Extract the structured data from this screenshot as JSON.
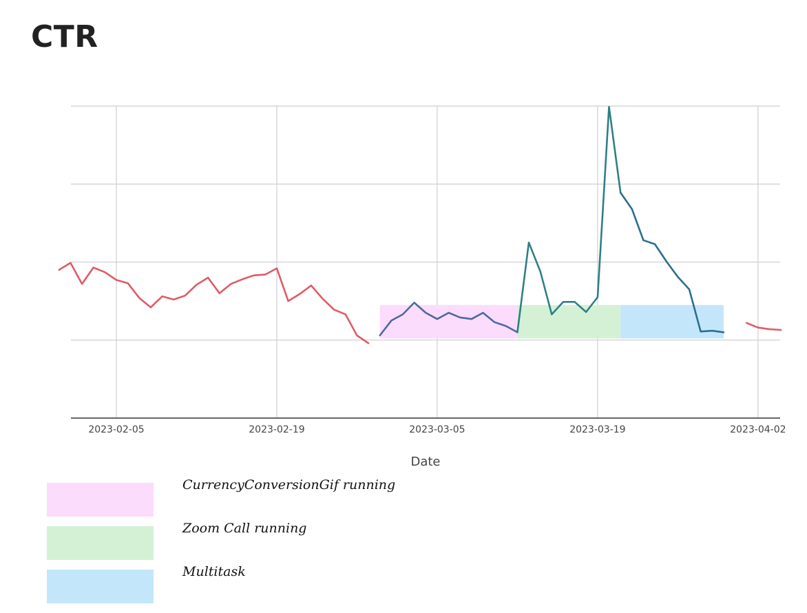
{
  "page": {
    "title": "CTR"
  },
  "chart_data": {
    "type": "line",
    "title": "CTR",
    "xlabel": "Date",
    "ylabel": "",
    "x_ticks": [
      "2023-02-05",
      "2023-02-19",
      "2023-03-05",
      "2023-03-19",
      "2023-04-02"
    ],
    "x_range": [
      "2023-01-31",
      "2023-04-04"
    ],
    "y_range": [
      0,
      4
    ],
    "y_gridlines": [
      1,
      2,
      3,
      4
    ],
    "y_tick_labels_visible": false,
    "grid": true,
    "series": [
      {
        "color": "#e05a66",
        "points": [
          [
            "2023-01-31",
            1.9
          ],
          [
            "2023-02-01",
            1.99
          ],
          [
            "2023-02-02",
            1.72
          ],
          [
            "2023-02-03",
            1.93
          ],
          [
            "2023-02-04",
            1.87
          ],
          [
            "2023-02-05",
            1.77
          ],
          [
            "2023-02-06",
            1.73
          ],
          [
            "2023-02-07",
            1.54
          ],
          [
            "2023-02-08",
            1.42
          ],
          [
            "2023-02-09",
            1.56
          ],
          [
            "2023-02-10",
            1.52
          ],
          [
            "2023-02-11",
            1.57
          ],
          [
            "2023-02-12",
            1.71
          ],
          [
            "2023-02-13",
            1.8
          ],
          [
            "2023-02-14",
            1.6
          ],
          [
            "2023-02-15",
            1.72
          ],
          [
            "2023-02-16",
            1.78
          ],
          [
            "2023-02-17",
            1.83
          ],
          [
            "2023-02-18",
            1.84
          ],
          [
            "2023-02-19",
            1.92
          ],
          [
            "2023-02-20",
            1.5
          ],
          [
            "2023-02-21",
            1.59
          ],
          [
            "2023-02-22",
            1.7
          ],
          [
            "2023-02-23",
            1.53
          ],
          [
            "2023-02-24",
            1.39
          ],
          [
            "2023-02-25",
            1.33
          ],
          [
            "2023-02-26",
            1.06
          ],
          [
            "2023-02-27",
            0.96
          ]
        ]
      },
      {
        "color": "#4f68a0",
        "points": [
          [
            "2023-02-28",
            1.06
          ],
          [
            "2023-03-01",
            1.25
          ],
          [
            "2023-03-02",
            1.33
          ],
          [
            "2023-03-03",
            1.48
          ],
          [
            "2023-03-04",
            1.35
          ],
          [
            "2023-03-05",
            1.27
          ],
          [
            "2023-03-06",
            1.35
          ],
          [
            "2023-03-07",
            1.29
          ],
          [
            "2023-03-08",
            1.27
          ],
          [
            "2023-03-09",
            1.35
          ],
          [
            "2023-03-10",
            1.23
          ],
          [
            "2023-03-11",
            1.18
          ],
          [
            "2023-03-12",
            1.1
          ]
        ]
      },
      {
        "color": "#2e7f86",
        "points": [
          [
            "2023-03-12",
            1.1
          ],
          [
            "2023-03-13",
            2.25
          ],
          [
            "2023-03-14",
            1.88
          ],
          [
            "2023-03-15",
            1.33
          ],
          [
            "2023-03-16",
            1.49
          ],
          [
            "2023-03-17",
            1.49
          ],
          [
            "2023-03-18",
            1.36
          ],
          [
            "2023-03-19",
            1.55
          ],
          [
            "2023-03-20",
            3.99
          ],
          [
            "2023-03-21",
            2.89
          ]
        ]
      },
      {
        "color": "#2b6e8f",
        "points": [
          [
            "2023-03-21",
            2.89
          ],
          [
            "2023-03-22",
            2.68
          ],
          [
            "2023-03-23",
            2.28
          ],
          [
            "2023-03-24",
            2.23
          ],
          [
            "2023-03-25",
            2.01
          ],
          [
            "2023-03-26",
            1.81
          ],
          [
            "2023-03-27",
            1.65
          ],
          [
            "2023-03-28",
            1.11
          ],
          [
            "2023-03-29",
            1.12
          ],
          [
            "2023-03-30",
            1.1
          ]
        ]
      },
      {
        "color": "#e05a66",
        "points": [
          [
            "2023-04-01",
            1.22
          ],
          [
            "2023-04-02",
            1.16
          ],
          [
            "2023-04-03",
            1.14
          ],
          [
            "2023-04-04",
            1.13
          ]
        ]
      }
    ],
    "bands": [
      {
        "label": "CurrencyConversionGif running",
        "color": "#fcdcfc",
        "x_start": "2023-02-28",
        "x_end": "2023-03-12",
        "y_from": 1.02,
        "y_to": 1.45
      },
      {
        "label": "Zoom Call running",
        "color": "#d4f1d6",
        "x_start": "2023-03-12",
        "x_end": "2023-03-21",
        "y_from": 1.02,
        "y_to": 1.45
      },
      {
        "label": "Multitask",
        "color": "#c4e6fb",
        "x_start": "2023-03-21",
        "x_end": "2023-03-30",
        "y_from": 1.02,
        "y_to": 1.45
      }
    ],
    "legend": {
      "placement": "bottom-left",
      "items": [
        {
          "label": "CurrencyConversionGif running",
          "color": "#fcdcfc"
        },
        {
          "label": "Zoom Call running",
          "color": "#d4f1d6"
        },
        {
          "label": "Multitask",
          "color": "#c4e6fb"
        }
      ]
    }
  }
}
